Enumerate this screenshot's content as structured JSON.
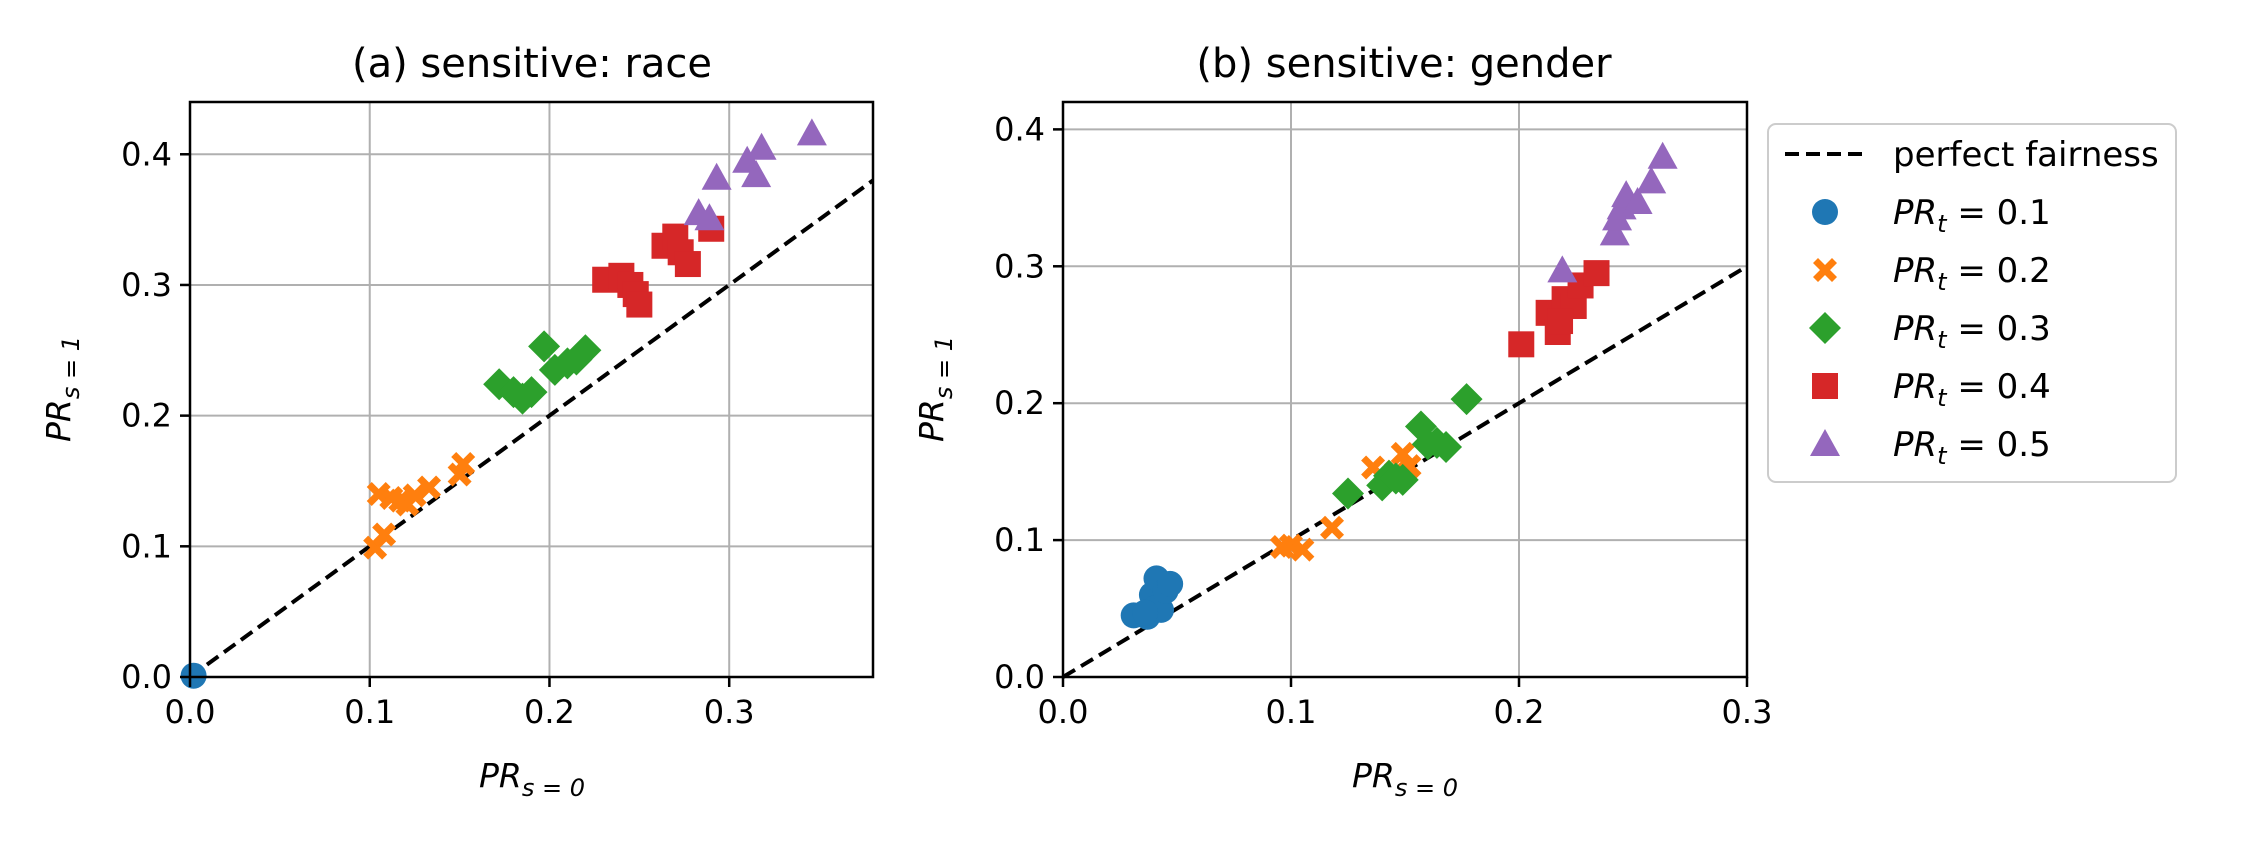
{
  "legend": {
    "placement": "outside-right",
    "entries": [
      {
        "label": "perfect fairness",
        "marker": "dashed-line",
        "color": "#000000"
      },
      {
        "label_main": "PR",
        "label_sub": "t",
        "label_value": " = 0.1",
        "marker": "circle",
        "color": "#1f77b4"
      },
      {
        "label_main": "PR",
        "label_sub": "t",
        "label_value": " = 0.2",
        "marker": "x-cross",
        "color": "#ff7f0e"
      },
      {
        "label_main": "PR",
        "label_sub": "t",
        "label_value": " = 0.3",
        "marker": "diamond",
        "color": "#2ca02c"
      },
      {
        "label_main": "PR",
        "label_sub": "t",
        "label_value": " = 0.4",
        "marker": "square",
        "color": "#d62728"
      },
      {
        "label_main": "PR",
        "label_sub": "t",
        "label_value": " = 0.5",
        "marker": "triangle",
        "color": "#9467bd"
      }
    ]
  },
  "chart_data": [
    {
      "type": "scatter",
      "title": "(a) sensitive: race",
      "xlabel_main": "PR",
      "xlabel_sub": "s = 0",
      "ylabel_main": "PR",
      "ylabel_sub": "s = 1",
      "xlim": [
        0,
        0.38
      ],
      "ylim": [
        0,
        0.44
      ],
      "xticks": [
        0.0,
        0.1,
        0.2,
        0.3
      ],
      "xtick_labels": [
        "0.0",
        "0.1",
        "0.2",
        "0.3"
      ],
      "yticks": [
        0.0,
        0.1,
        0.2,
        0.3,
        0.4
      ],
      "ytick_labels": [
        "0.0",
        "0.1",
        "0.2",
        "0.3",
        "0.4"
      ],
      "grid": true,
      "reference_line": {
        "name": "perfect fairness",
        "slope": 1,
        "intercept": 0
      },
      "series": [
        {
          "name": "PR_t = 0.1",
          "marker": "circle",
          "color": "#1f77b4",
          "points": [
            [
              0.002,
              0.001
            ]
          ]
        },
        {
          "name": "PR_t = 0.2",
          "marker": "x-cross",
          "color": "#ff7f0e",
          "points": [
            [
              0.103,
              0.099
            ],
            [
              0.108,
              0.109
            ],
            [
              0.105,
              0.14
            ],
            [
              0.112,
              0.137
            ],
            [
              0.117,
              0.135
            ],
            [
              0.121,
              0.132
            ],
            [
              0.125,
              0.139
            ],
            [
              0.133,
              0.145
            ],
            [
              0.15,
              0.155
            ],
            [
              0.152,
              0.163
            ]
          ]
        },
        {
          "name": "PR_t = 0.3",
          "marker": "diamond",
          "color": "#2ca02c",
          "points": [
            [
              0.172,
              0.224
            ],
            [
              0.18,
              0.218
            ],
            [
              0.185,
              0.213
            ],
            [
              0.19,
              0.218
            ],
            [
              0.197,
              0.253
            ],
            [
              0.203,
              0.235
            ],
            [
              0.21,
              0.24
            ],
            [
              0.215,
              0.243
            ],
            [
              0.22,
              0.25
            ]
          ]
        },
        {
          "name": "PR_t = 0.4",
          "marker": "square",
          "color": "#d62728",
          "points": [
            [
              0.231,
              0.304
            ],
            [
              0.24,
              0.307
            ],
            [
              0.245,
              0.3
            ],
            [
              0.248,
              0.293
            ],
            [
              0.25,
              0.285
            ],
            [
              0.264,
              0.33
            ],
            [
              0.27,
              0.337
            ],
            [
              0.273,
              0.325
            ],
            [
              0.277,
              0.316
            ],
            [
              0.29,
              0.343
            ]
          ]
        },
        {
          "name": "PR_t = 0.5",
          "marker": "triangle",
          "color": "#9467bd",
          "points": [
            [
              0.283,
              0.355
            ],
            [
              0.289,
              0.351
            ],
            [
              0.293,
              0.382
            ],
            [
              0.31,
              0.395
            ],
            [
              0.315,
              0.384
            ],
            [
              0.318,
              0.405
            ],
            [
              0.346,
              0.416
            ]
          ]
        }
      ]
    },
    {
      "type": "scatter",
      "title": "(b) sensitive: gender",
      "xlabel_main": "PR",
      "xlabel_sub": "s = 0",
      "ylabel_main": "PR",
      "ylabel_sub": "s = 1",
      "xlim": [
        0,
        0.3
      ],
      "ylim": [
        0,
        0.42
      ],
      "xticks": [
        0.0,
        0.1,
        0.2,
        0.3
      ],
      "xtick_labels": [
        "0.0",
        "0.1",
        "0.2",
        "0.3"
      ],
      "yticks": [
        0.0,
        0.1,
        0.2,
        0.3,
        0.4
      ],
      "ytick_labels": [
        "0.0",
        "0.1",
        "0.2",
        "0.3",
        "0.4"
      ],
      "grid": true,
      "reference_line": {
        "name": "perfect fairness",
        "slope": 1,
        "intercept": 0
      },
      "series": [
        {
          "name": "PR_t = 0.1",
          "marker": "circle",
          "color": "#1f77b4",
          "points": [
            [
              0.031,
              0.045
            ],
            [
              0.037,
              0.044
            ],
            [
              0.039,
              0.06
            ],
            [
              0.04,
              0.05
            ],
            [
              0.041,
              0.072
            ],
            [
              0.043,
              0.049
            ],
            [
              0.045,
              0.063
            ],
            [
              0.047,
              0.068
            ],
            [
              0.036,
              0.047
            ]
          ]
        },
        {
          "name": "PR_t = 0.2",
          "marker": "x-cross",
          "color": "#ff7f0e",
          "points": [
            [
              0.096,
              0.095
            ],
            [
              0.1,
              0.096
            ],
            [
              0.105,
              0.093
            ],
            [
              0.118,
              0.109
            ],
            [
              0.136,
              0.153
            ],
            [
              0.14,
              0.146
            ],
            [
              0.146,
              0.15
            ],
            [
              0.149,
              0.163
            ],
            [
              0.152,
              0.154
            ]
          ]
        },
        {
          "name": "PR_t = 0.3",
          "marker": "diamond",
          "color": "#2ca02c",
          "points": [
            [
              0.125,
              0.134
            ],
            [
              0.14,
              0.14
            ],
            [
              0.143,
              0.147
            ],
            [
              0.146,
              0.145
            ],
            [
              0.149,
              0.144
            ],
            [
              0.157,
              0.183
            ],
            [
              0.16,
              0.17
            ],
            [
              0.164,
              0.171
            ],
            [
              0.168,
              0.168
            ],
            [
              0.177,
              0.203
            ]
          ]
        },
        {
          "name": "PR_t = 0.4",
          "marker": "square",
          "color": "#d62728",
          "points": [
            [
              0.201,
              0.243
            ],
            [
              0.213,
              0.266
            ],
            [
              0.217,
              0.252
            ],
            [
              0.22,
              0.276
            ],
            [
              0.224,
              0.271
            ],
            [
              0.227,
              0.286
            ],
            [
              0.234,
              0.295
            ],
            [
              0.218,
              0.26
            ]
          ]
        },
        {
          "name": "PR_t = 0.5",
          "marker": "triangle",
          "color": "#9467bd",
          "points": [
            [
              0.219,
              0.297
            ],
            [
              0.242,
              0.324
            ],
            [
              0.243,
              0.335
            ],
            [
              0.245,
              0.343
            ],
            [
              0.247,
              0.352
            ],
            [
              0.252,
              0.347
            ],
            [
              0.258,
              0.362
            ],
            [
              0.263,
              0.38
            ]
          ]
        }
      ]
    }
  ]
}
